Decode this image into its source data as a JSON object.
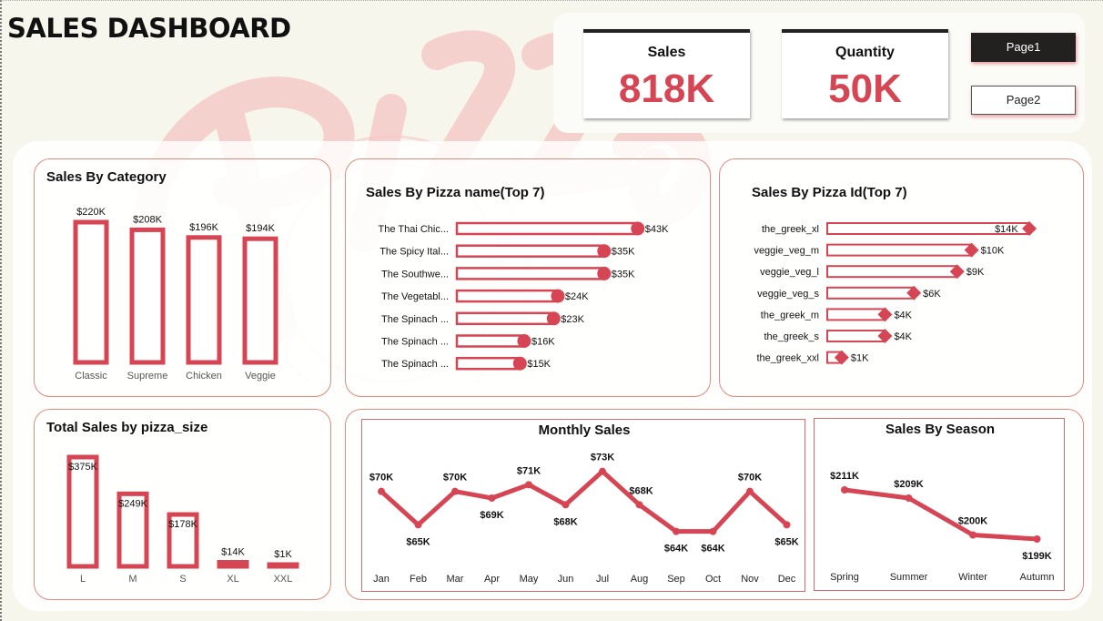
{
  "header": {
    "title": "SALES DASHBOARD"
  },
  "kpis": {
    "sales": {
      "label": "Sales",
      "value": "818K"
    },
    "quantity": {
      "label": "Quantity",
      "value": "50K"
    }
  },
  "nav": {
    "page1": "Page1",
    "page2": "Page2"
  },
  "colors": {
    "accent": "#d64553",
    "text": "#111111",
    "background": "#f7f6ec"
  },
  "chart_data": [
    {
      "id": "category",
      "type": "bar",
      "title": "Sales By Category",
      "categories": [
        "Classic",
        "Supreme",
        "Chicken",
        "Veggie"
      ],
      "values": [
        220,
        208,
        196,
        194
      ],
      "labels": [
        "$220K",
        "$208K",
        "$196K",
        "$194K"
      ],
      "unit": "K"
    },
    {
      "id": "pizza_name",
      "type": "bar",
      "orientation": "horizontal",
      "title": "Sales By Pizza name(Top 7)",
      "categories": [
        "The Thai Chic...",
        "The Spicy Ital...",
        "The Southwe...",
        "The Vegetabl...",
        "The Spinach ...",
        "The Spinach ...",
        "The Spinach ..."
      ],
      "values": [
        43,
        35,
        35,
        24,
        23,
        16,
        15
      ],
      "labels": [
        "$43K",
        "$35K",
        "$35K",
        "$24K",
        "$23K",
        "$16K",
        "$15K"
      ],
      "xlim": [
        0,
        45
      ]
    },
    {
      "id": "pizza_id",
      "type": "bar",
      "orientation": "horizontal",
      "title": "Sales By Pizza Id(Top 7)",
      "categories": [
        "the_greek_xl",
        "veggie_veg_m",
        "veggie_veg_l",
        "veggie_veg_s",
        "the_greek_m",
        "the_greek_s",
        "the_greek_xxl"
      ],
      "values": [
        14,
        10,
        9,
        6,
        4,
        4,
        1
      ],
      "labels": [
        "$14K",
        "$10K",
        "$9K",
        "$6K",
        "$4K",
        "$4K",
        "$1K"
      ],
      "xlim": [
        0,
        14.5
      ]
    },
    {
      "id": "pizza_size",
      "type": "bar",
      "title": "Total Sales by pizza_size",
      "categories": [
        "L",
        "M",
        "S",
        "XL",
        "XXL"
      ],
      "values": [
        375,
        249,
        178,
        14,
        1
      ],
      "labels": [
        "$375K",
        "$249K",
        "$178K",
        "$14K",
        "$1K"
      ]
    },
    {
      "id": "monthly",
      "type": "line",
      "title": "Monthly Sales",
      "categories": [
        "Jan",
        "Feb",
        "Mar",
        "Apr",
        "May",
        "Jun",
        "Jul",
        "Aug",
        "Sep",
        "Oct",
        "Nov",
        "Dec"
      ],
      "values": [
        70,
        65,
        70,
        69,
        71,
        68,
        73,
        68,
        64,
        64,
        70,
        65
      ],
      "labels": [
        "$70K",
        "$65K",
        "$70K",
        "$69K",
        "$71K",
        "$68K",
        "$73K",
        "$68K",
        "$64K",
        "$64K",
        "$70K",
        "$65K"
      ],
      "ylim": [
        60,
        75
      ]
    },
    {
      "id": "season",
      "type": "line",
      "title": "Sales By Season",
      "categories": [
        "Spring",
        "Summer",
        "Winter",
        "Autumn"
      ],
      "values": [
        211,
        209,
        200,
        199
      ],
      "labels": [
        "$211K",
        "$209K",
        "$200K",
        "$199K"
      ],
      "ylim": [
        195,
        215
      ]
    }
  ]
}
